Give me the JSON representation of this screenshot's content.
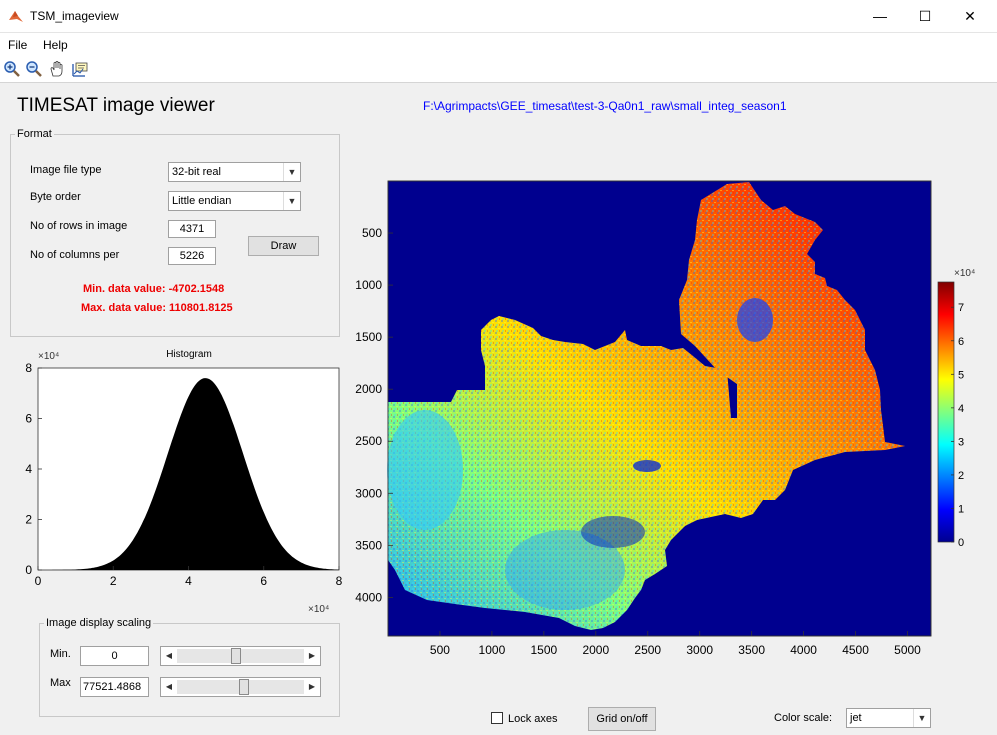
{
  "window": {
    "title": "TSM_imageview",
    "minimize": "—",
    "maximize": "☐",
    "close": "✕"
  },
  "menu": {
    "file": "File",
    "help": "Help"
  },
  "toolbar": {
    "icons": [
      "zoom-in-icon",
      "zoom-out-icon",
      "pan-hand-icon",
      "data-cursor-icon"
    ]
  },
  "app_title": "TIMESAT image viewer",
  "file_path": "F:\\Agrimpacts\\GEE_timesat\\test-3-Qa0n1_raw\\small_integ_season1",
  "format": {
    "legend": "Format",
    "image_file_type_label": "Image file type",
    "image_file_type_value": "32-bit real",
    "byte_order_label": "Byte order",
    "byte_order_value": "Little endian",
    "rows_label": "No of rows in image",
    "rows_value": "4371",
    "cols_label": "No of columns per",
    "cols_value": "5226",
    "draw_button": "Draw",
    "min_data": "Min. data value: -4702.1548",
    "max_data": "Max. data value: 110801.8125"
  },
  "scaling": {
    "legend": "Image display scaling",
    "min_label": "Min.",
    "min_value": "0",
    "max_label": "Max",
    "max_value": "77521.4868",
    "min_slider_fraction": 0.45,
    "max_slider_fraction": 0.52
  },
  "bottom": {
    "lock_axes": "Lock axes",
    "grid_button": "Grid on/off",
    "color_scale_label": "Color scale:",
    "color_scale_value": "jet"
  },
  "chart_data": [
    {
      "type": "bar",
      "title": "Histogram",
      "x_ticks": [
        "0",
        "2",
        "4",
        "6",
        "8"
      ],
      "y_ticks": [
        "0",
        "2",
        "4",
        "6",
        "8"
      ],
      "x_exponent": "×10⁴",
      "y_exponent": "×10⁴",
      "xlim": [
        0,
        80000
      ],
      "ylim": [
        0,
        80000
      ],
      "distribution": {
        "center": 44500,
        "peak": 76000,
        "spread": 10000
      },
      "color": "#000000"
    },
    {
      "type": "heatmap",
      "colormap": "jet",
      "background": "#00008f",
      "x_ticks": [
        "500",
        "1000",
        "1500",
        "2000",
        "2500",
        "3000",
        "3500",
        "4000",
        "4500",
        "5000"
      ],
      "y_ticks": [
        "500",
        "1000",
        "1500",
        "2000",
        "2500",
        "3000",
        "3500",
        "4000"
      ],
      "xlim": [
        0,
        5226
      ],
      "ylim": [
        0,
        4371
      ],
      "colorbar_ticks": [
        "0",
        "1",
        "2",
        "3",
        "4",
        "5",
        "6",
        "7"
      ],
      "colorbar_exponent": "×10⁴",
      "colorbar_range": [
        0,
        77521.4868
      ]
    }
  ]
}
